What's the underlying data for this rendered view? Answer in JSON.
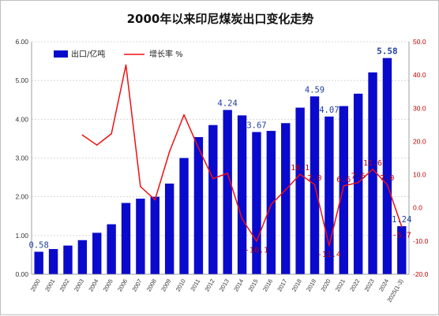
{
  "chart_data": {
    "type": "bar",
    "title": "2000年以来印尼煤炭出口变化走势",
    "categories": [
      "2000",
      "2001",
      "2002",
      "2003",
      "2004",
      "2005",
      "2006",
      "2007",
      "2008",
      "2009",
      "2010",
      "2011",
      "2012",
      "2013",
      "2014",
      "2015",
      "2016",
      "2017",
      "2018",
      "2019",
      "2020",
      "2021",
      "2022",
      "2023",
      "2024",
      "2025(1-3)"
    ],
    "series": [
      {
        "name": "出口/亿吨",
        "type": "bar",
        "axis": "left",
        "color": "#0a0acc",
        "values": [
          0.58,
          0.65,
          0.74,
          0.88,
          1.07,
          1.29,
          1.84,
          1.95,
          2.0,
          2.34,
          3.0,
          3.54,
          3.85,
          4.24,
          4.1,
          3.67,
          3.7,
          3.9,
          4.3,
          4.59,
          4.07,
          4.34,
          4.66,
          5.21,
          5.58,
          1.24
        ]
      },
      {
        "name": "增长率 %",
        "type": "line",
        "axis": "right",
        "color": "#ee1111",
        "values": [
          null,
          null,
          null,
          21.9,
          18.9,
          22.3,
          43.0,
          6.4,
          2.4,
          16.9,
          28.0,
          18.0,
          8.8,
          10.4,
          -3.3,
          -10.1,
          1.0,
          5.4,
          10.1,
          7.0,
          -11.4,
          6.6,
          7.6,
          11.6,
          7.0,
          -5.7
        ]
      }
    ],
    "bar_labels": [
      {
        "index": 0,
        "text": "0.58"
      },
      {
        "index": 13,
        "text": "4.24"
      },
      {
        "index": 15,
        "text": "3.67"
      },
      {
        "index": 19,
        "text": "4.59"
      },
      {
        "index": 20,
        "text": "4.07"
      },
      {
        "index": 24,
        "text": "5.58"
      },
      {
        "index": 25,
        "text": "1.24"
      }
    ],
    "line_labels": [
      {
        "index": 15,
        "text": "-10.1"
      },
      {
        "index": 18,
        "text": "10.1"
      },
      {
        "index": 19,
        "text": "7.0"
      },
      {
        "index": 20,
        "text": "-11.4"
      },
      {
        "index": 21,
        "text": "6.6"
      },
      {
        "index": 22,
        "text": "7.6"
      },
      {
        "index": 23,
        "text": "11.6"
      },
      {
        "index": 24,
        "text": "7.0"
      },
      {
        "index": 25,
        "text": "-5.7"
      }
    ],
    "y_left": {
      "min": 0,
      "max": 6,
      "ticks": [
        "0.00",
        "1.00",
        "2.00",
        "3.00",
        "4.00",
        "5.00",
        "6.00"
      ]
    },
    "y_right": {
      "min": -20,
      "max": 50,
      "ticks": [
        "-20.0",
        "-10.0",
        "0.0",
        "10.0",
        "20.0",
        "30.0",
        "40.0",
        "50.0"
      ]
    },
    "grid": true,
    "legend_position": "top-left"
  }
}
